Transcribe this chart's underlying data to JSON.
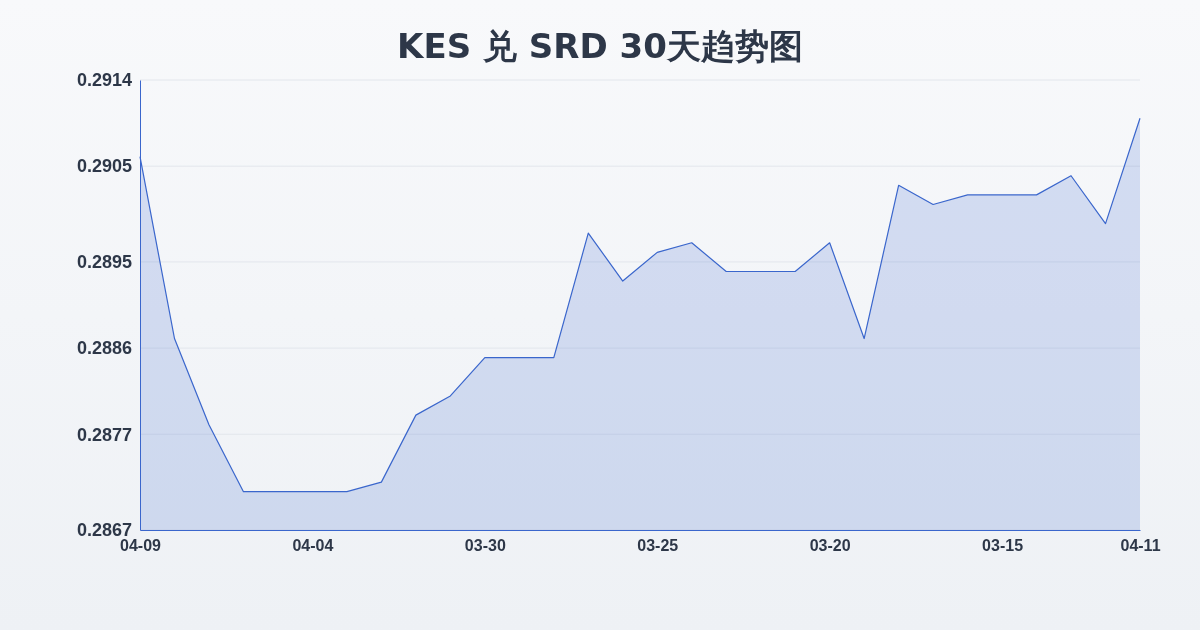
{
  "chart_data": {
    "type": "area",
    "title": "KES 兑 SRD 30天趋势图",
    "categories": [
      "04-09",
      null,
      null,
      null,
      null,
      "04-04",
      null,
      null,
      null,
      null,
      "03-30",
      null,
      null,
      null,
      null,
      "03-25",
      null,
      null,
      null,
      null,
      "03-20",
      null,
      null,
      null,
      null,
      "03-15",
      null,
      null,
      null,
      "04-11"
    ],
    "series": [
      {
        "color": "#3a66cc",
        "values": [
          0.2906,
          0.2887,
          0.2878,
          0.2871,
          0.2871,
          0.2871,
          0.2871,
          0.2872,
          0.2879,
          0.2881,
          0.2885,
          0.2885,
          0.2885,
          0.2898,
          0.2893,
          0.2896,
          0.2897,
          0.2894,
          0.2894,
          0.2894,
          0.2897,
          0.2887,
          0.2903,
          0.2901,
          0.2902,
          0.2902,
          0.2902,
          0.2904,
          0.2899,
          0.291
        ]
      }
    ],
    "ylim": [
      0.2867,
      0.2914
    ],
    "yticks": [
      0.2867,
      0.2877,
      0.2886,
      0.2895,
      0.2905,
      0.2914
    ],
    "grid": "y"
  }
}
